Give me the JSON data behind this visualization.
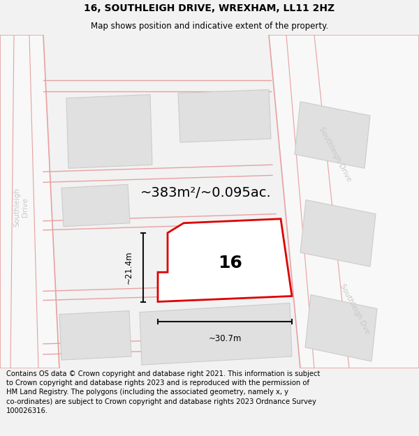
{
  "title": "16, SOUTHLEIGH DRIVE, WREXHAM, LL11 2HZ",
  "subtitle": "Map shows position and indicative extent of the property.",
  "area_text": "~383m²/~0.095ac.",
  "label_16": "16",
  "dim_width": "~30.7m",
  "dim_height": "~21.4m",
  "footer": "Contains OS data © Crown copyright and database right 2021. This information is subject to Crown copyright and database rights 2023 and is reproduced with the permission of HM Land Registry. The polygons (including the associated geometry, namely x, y co-ordinates) are subject to Crown copyright and database rights 2023 Ordnance Survey 100026316.",
  "bg_color": "#f2f2f2",
  "map_bg": "#f0f0f0",
  "map_border": "#cccccc",
  "plot_color": "#dd0000",
  "plot_fill": "#ffffff",
  "road_color": "#e8a0a0",
  "road_fill": "#f8f8f8",
  "building_color": "#e0e0e0",
  "building_edge": "#cccccc",
  "road_label_color": "#c8c8c8",
  "dim_color": "#111111",
  "title_fontsize": 10,
  "subtitle_fontsize": 8.5,
  "footer_fontsize": 7.2,
  "area_fontsize": 14,
  "label_fontsize": 18,
  "dim_fontsize": 8.5,
  "road_label_fontsize": 7.5
}
